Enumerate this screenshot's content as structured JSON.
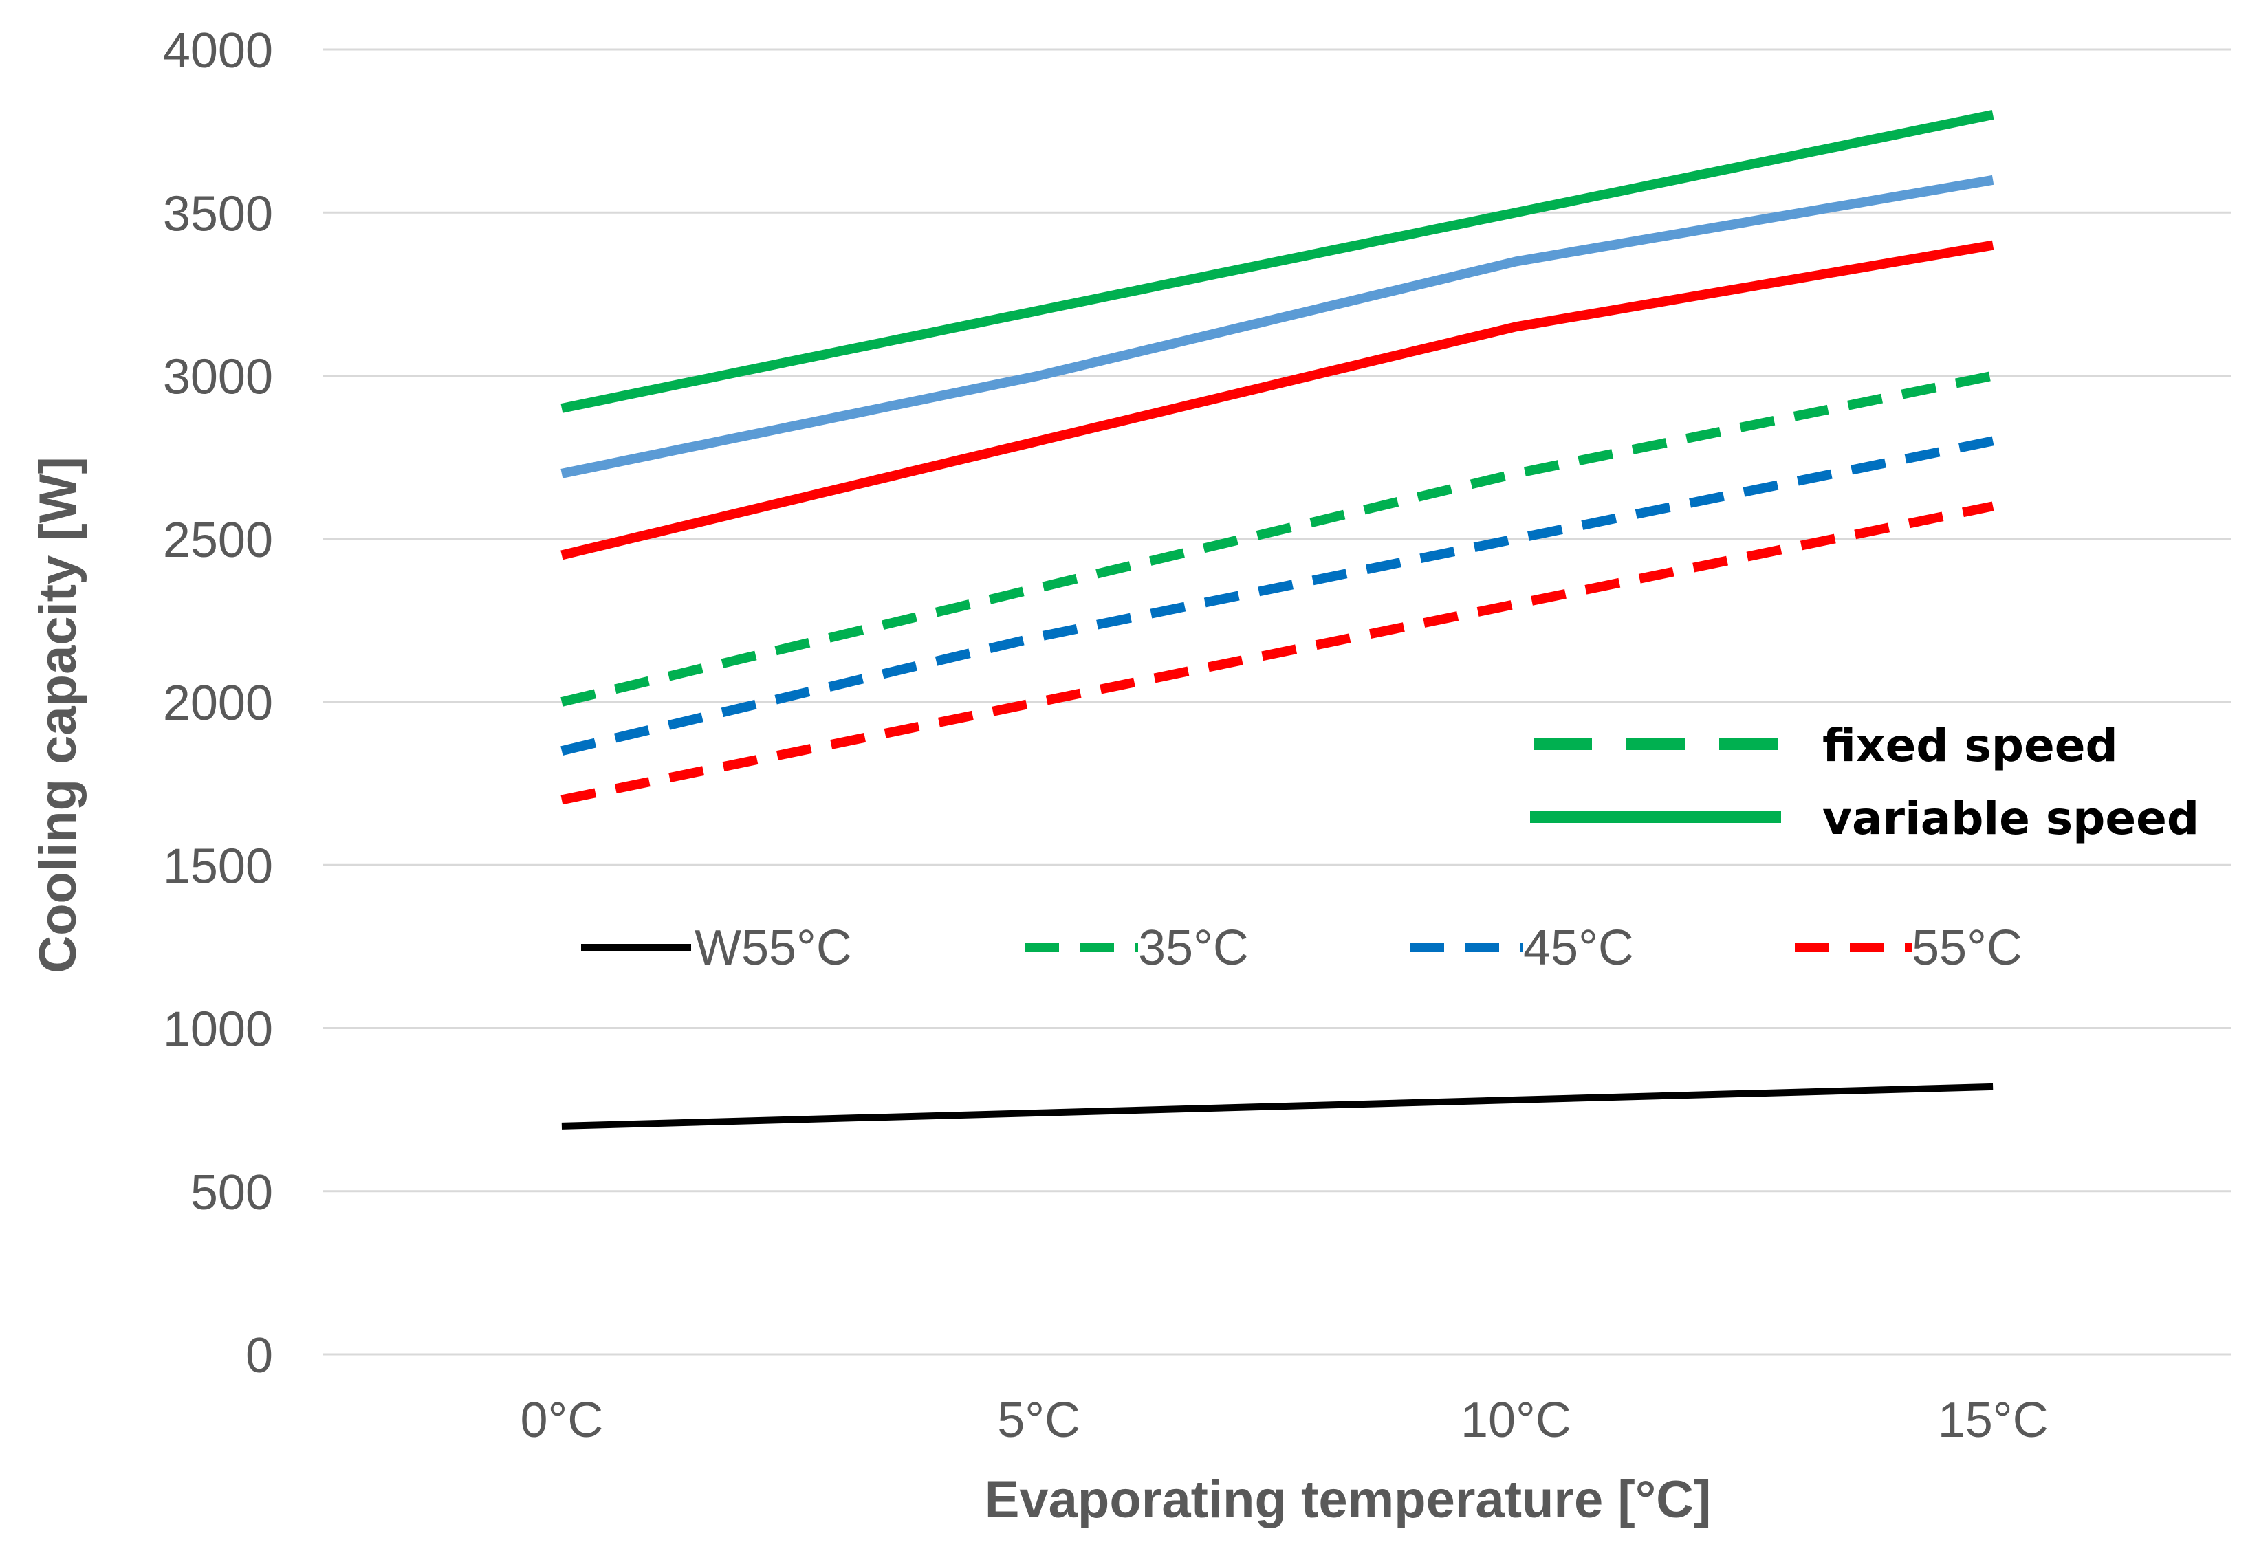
{
  "chart_data": {
    "type": "line",
    "title": "",
    "xlabel": "Evaporating temperature [°C]",
    "ylabel": "Cooling capacity  [W]",
    "categories": [
      "0°C",
      "5°C",
      "10°C",
      "15°C"
    ],
    "x": [
      0,
      5,
      10,
      15
    ],
    "xlim": [
      -2.5,
      17.5
    ],
    "ylim": [
      0,
      4000
    ],
    "yticks": [
      0,
      500,
      1000,
      1500,
      2000,
      2500,
      3000,
      3500,
      4000
    ],
    "grid": "horizontal",
    "series": [
      {
        "name": "W55°C",
        "style": "solid",
        "color": "#000000",
        "values": [
          700,
          740,
          780,
          820
        ]
      },
      {
        "name": "35°C",
        "speed": "fixed speed",
        "style": "dashed",
        "color": "#00B050",
        "values": [
          2000,
          2350,
          2700,
          3000
        ]
      },
      {
        "name": "45°C",
        "speed": "fixed speed",
        "style": "dashed",
        "color": "#0070C0",
        "values": [
          1850,
          2200,
          2500,
          2800
        ]
      },
      {
        "name": "55°C",
        "speed": "fixed speed",
        "style": "dashed",
        "color": "#FF0000",
        "values": [
          1700,
          2000,
          2300,
          2600
        ]
      },
      {
        "name": "35°C",
        "speed": "variable speed",
        "style": "solid",
        "color": "#00B050",
        "values": [
          2900,
          3200,
          3500,
          3800
        ]
      },
      {
        "name": "45°C",
        "speed": "variable speed",
        "style": "solid",
        "color": "#5B9BD5",
        "values": [
          2700,
          3000,
          3350,
          3600
        ]
      },
      {
        "name": "55°C",
        "speed": "variable speed",
        "style": "solid",
        "color": "#FF0000",
        "values": [
          2450,
          2800,
          3150,
          3400
        ]
      }
    ],
    "legend_series": [
      {
        "label": "W55°C",
        "style": "solid",
        "color": "#000000"
      },
      {
        "label": "35°C",
        "style": "dashed",
        "color": "#00B050"
      },
      {
        "label": "45°C",
        "style": "dashed",
        "color": "#0070C0"
      },
      {
        "label": "55°C",
        "style": "dashed",
        "color": "#FF0000"
      }
    ],
    "legend_styles": [
      {
        "label": "fixed speed",
        "style": "dashed",
        "color": "#00B050"
      },
      {
        "label": "variable speed",
        "style": "solid",
        "color": "#00B050"
      }
    ],
    "legend_position": "inside-right"
  }
}
